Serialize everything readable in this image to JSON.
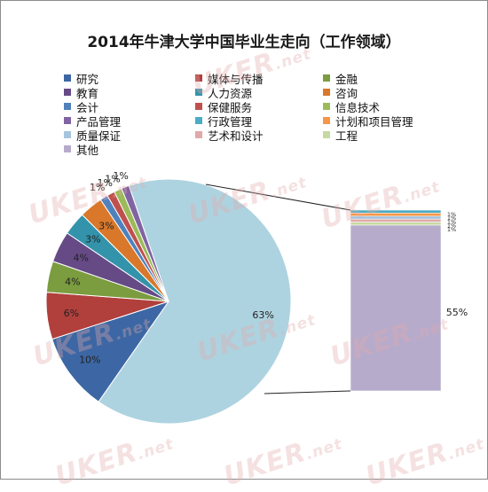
{
  "title": "2014年牛津大学中国毕业生走向（工作领域）",
  "watermark": {
    "text": "UKER",
    "suffix": ".net"
  },
  "chart_data": {
    "type": "pie",
    "title": "2014年牛津大学中国毕业生走向（工作领域）",
    "legend_position": "top",
    "main_pie": {
      "slices": [
        {
          "label": "其他",
          "value": 63,
          "data_label": "63%",
          "color": "#aed3e0"
        },
        {
          "label": "研究",
          "value": 10,
          "data_label": "10%",
          "color": "#3c67a4"
        },
        {
          "label": "媒体与传播",
          "value": 6,
          "data_label": "6%",
          "color": "#b13f3c"
        },
        {
          "label": "金融",
          "value": 4,
          "data_label": "4%",
          "color": "#7b9c3f"
        },
        {
          "label": "教育",
          "value": 4,
          "data_label": "4%",
          "color": "#664a86"
        },
        {
          "label": "人力资源",
          "value": 3,
          "data_label": "3%",
          "color": "#3393aa"
        },
        {
          "label": "咨询",
          "value": 3,
          "data_label": "3%",
          "color": "#d9782a"
        },
        {
          "label": "会计",
          "value": 1,
          "data_label": "1%",
          "color": "#4f81bd"
        },
        {
          "label": "保健服务",
          "value": 1,
          "data_label": "1%",
          "color": "#c0504d"
        },
        {
          "label": "信息技术",
          "value": 1,
          "data_label": "1%",
          "color": "#9bbb59"
        },
        {
          "label": "产品管理",
          "value": 1,
          "data_label": "1%",
          "color": "#8064a2"
        }
      ]
    },
    "breakdown_bar": {
      "label_shown": "55%",
      "segments": [
        {
          "label": "行政管理",
          "value": 1,
          "data_label": "1%",
          "color": "#4bacc6"
        },
        {
          "label": "计划和项目管理",
          "value": 1,
          "data_label": "1%",
          "color": "#f79646"
        },
        {
          "label": "质量保证",
          "value": 1,
          "data_label": "1%",
          "color": "#a5c4de"
        },
        {
          "label": "艺术和设计",
          "value": 1,
          "data_label": "1%",
          "color": "#e1a9a8"
        },
        {
          "label": "工程",
          "value": 1,
          "data_label": "1%",
          "color": "#c5d9a3"
        },
        {
          "label": "其他",
          "value": 55,
          "data_label": "55%",
          "color": "#b7abcb"
        }
      ]
    },
    "legend": [
      {
        "label": "研究",
        "color": "#3c67a4"
      },
      {
        "label": "媒体与传播",
        "color": "#b13f3c"
      },
      {
        "label": "金融",
        "color": "#7b9c3f"
      },
      {
        "label": "教育",
        "color": "#664a86"
      },
      {
        "label": "人力资源",
        "color": "#3393aa"
      },
      {
        "label": "咨询",
        "color": "#d9782a"
      },
      {
        "label": "会计",
        "color": "#4f81bd"
      },
      {
        "label": "保健服务",
        "color": "#c0504d"
      },
      {
        "label": "信息技术",
        "color": "#9bbb59"
      },
      {
        "label": "产品管理",
        "color": "#8064a2"
      },
      {
        "label": "行政管理",
        "color": "#4bacc6"
      },
      {
        "label": "计划和项目管理",
        "color": "#f79646"
      },
      {
        "label": "质量保证",
        "color": "#a5c4de"
      },
      {
        "label": "艺术和设计",
        "color": "#e1a9a8"
      },
      {
        "label": "工程",
        "color": "#c5d9a3"
      },
      {
        "label": "其他",
        "color": "#b7abcb"
      }
    ]
  }
}
